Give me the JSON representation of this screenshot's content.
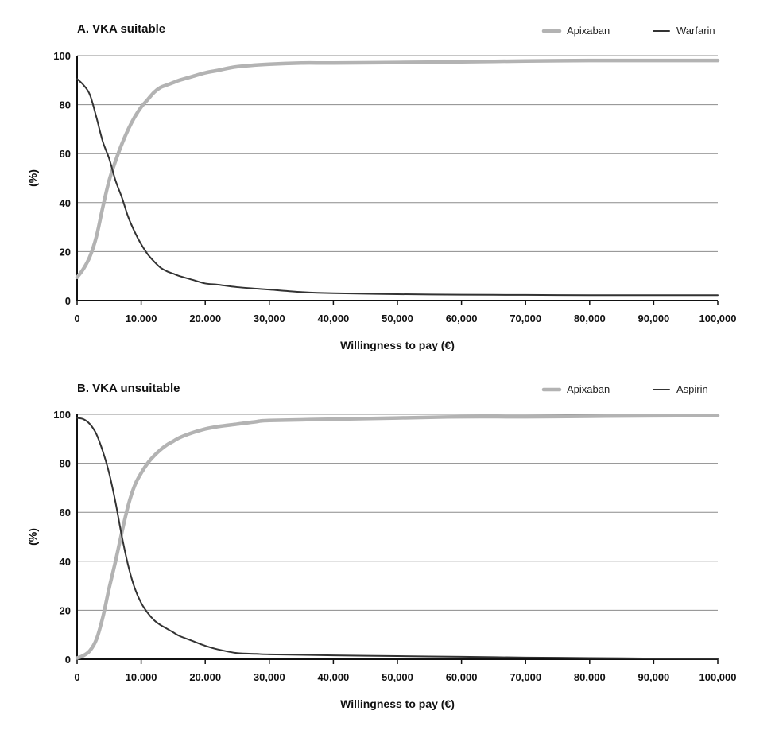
{
  "chart_data": [
    {
      "type": "line",
      "title": "A. VKA suitable",
      "xlabel": "Willingness to pay (€)",
      "ylabel": "(%)",
      "xlim": [
        0,
        100000
      ],
      "ylim": [
        0,
        100
      ],
      "xticks": [
        0,
        10000,
        20000,
        30000,
        40000,
        50000,
        60000,
        70000,
        80000,
        90000,
        100000
      ],
      "xtick_labels": [
        "0",
        "10.000",
        "20.000",
        "30,000",
        "40,000",
        "50,000",
        "60,000",
        "70,000",
        "80,000",
        "90,000",
        "100,000"
      ],
      "yticks": [
        0,
        20,
        40,
        60,
        80,
        100
      ],
      "ytick_labels": [
        "0",
        "20",
        "40",
        "60",
        "80",
        "100"
      ],
      "grid": true,
      "legend_position": "top-right",
      "series": [
        {
          "name": "Apixaban",
          "color": "#b3b3b3",
          "x": [
            0,
            1000,
            2000,
            3000,
            4000,
            5000,
            6000,
            7000,
            8000,
            9000,
            10000,
            11000,
            12000,
            13000,
            14000,
            15000,
            16000,
            18000,
            20000,
            22000,
            25000,
            30000,
            35000,
            40000,
            50000,
            60000,
            70000,
            80000,
            90000,
            100000
          ],
          "y": [
            9.5,
            13,
            18,
            26,
            38,
            49,
            57,
            64,
            70,
            75,
            79,
            82,
            85,
            87,
            88,
            89,
            90,
            91.5,
            93,
            94,
            95.5,
            96.5,
            97,
            97,
            97.2,
            97.5,
            97.8,
            98,
            98,
            98
          ]
        },
        {
          "name": "Warfarin",
          "color": "#333333",
          "x": [
            0,
            1000,
            2000,
            3000,
            4000,
            5000,
            6000,
            7000,
            8000,
            9000,
            10000,
            11000,
            12000,
            13000,
            14000,
            15000,
            16000,
            18000,
            20000,
            22000,
            25000,
            30000,
            35000,
            40000,
            50000,
            60000,
            70000,
            80000,
            90000,
            100000
          ],
          "y": [
            90.5,
            88,
            84,
            75,
            65,
            58,
            49,
            42,
            34,
            28,
            23,
            19,
            16,
            13.5,
            12,
            11,
            10,
            8.5,
            7,
            6.5,
            5.5,
            4.5,
            3.5,
            3,
            2.6,
            2.4,
            2.3,
            2.2,
            2.2,
            2.2
          ]
        }
      ]
    },
    {
      "type": "line",
      "title": "B. VKA unsuitable",
      "xlabel": "Willingness to pay (€)",
      "ylabel": "(%)",
      "xlim": [
        0,
        100000
      ],
      "ylim": [
        0,
        100
      ],
      "xticks": [
        0,
        10000,
        20000,
        30000,
        40000,
        50000,
        60000,
        70000,
        80000,
        90000,
        100000
      ],
      "xtick_labels": [
        "0",
        "10.000",
        "20.000",
        "30,000",
        "40,000",
        "50,000",
        "60,000",
        "70,000",
        "80,000",
        "90,000",
        "100,000"
      ],
      "yticks": [
        0,
        20,
        40,
        60,
        80,
        100
      ],
      "ytick_labels": [
        "0",
        "20",
        "40",
        "60",
        "80",
        "100"
      ],
      "grid": true,
      "legend_position": "top-right",
      "series": [
        {
          "name": "Apixaban",
          "color": "#b3b3b3",
          "x": [
            0,
            1000,
            2000,
            3000,
            4000,
            5000,
            6000,
            7000,
            8000,
            9000,
            10000,
            11000,
            12000,
            13000,
            14000,
            15000,
            16000,
            18000,
            20000,
            22000,
            25000,
            28000,
            30000,
            40000,
            50000,
            60000,
            70000,
            80000,
            90000,
            100000
          ],
          "y": [
            0.5,
            1.5,
            3.5,
            8,
            17,
            29,
            40,
            52,
            63,
            71,
            76,
            80,
            83,
            85.5,
            87.5,
            89,
            90.5,
            92.5,
            94,
            95,
            96,
            97,
            97.5,
            98,
            98.5,
            99,
            99,
            99.2,
            99.4,
            99.5
          ]
        },
        {
          "name": "Aspirin",
          "color": "#333333",
          "x": [
            0,
            1000,
            2000,
            3000,
            4000,
            5000,
            6000,
            7000,
            8000,
            9000,
            10000,
            11000,
            12000,
            13000,
            14000,
            15000,
            16000,
            18000,
            20000,
            22000,
            25000,
            28000,
            30000,
            40000,
            50000,
            60000,
            70000,
            80000,
            90000,
            100000
          ],
          "y": [
            98.5,
            98,
            96,
            92,
            85,
            76,
            64,
            50,
            38,
            29,
            23,
            19,
            16,
            14,
            12.5,
            11,
            9.5,
            7.5,
            5.5,
            4,
            2.5,
            2.2,
            2,
            1.6,
            1.3,
            1,
            0.7,
            0.5,
            0.3,
            0.2
          ]
        }
      ]
    }
  ]
}
